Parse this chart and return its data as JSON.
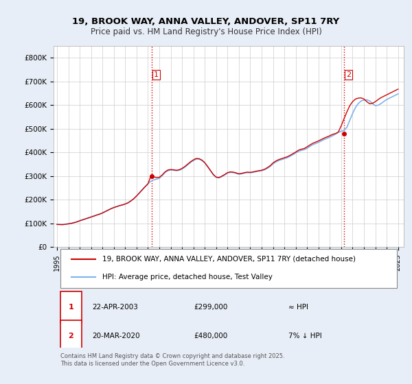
{
  "title_line1": "19, BROOK WAY, ANNA VALLEY, ANDOVER, SP11 7RY",
  "title_line2": "Price paid vs. HM Land Registry's House Price Index (HPI)",
  "ylabel": "",
  "xlim_start": 1995.0,
  "xlim_end": 2025.5,
  "ylim_bottom": 0,
  "ylim_top": 850000,
  "yticks": [
    0,
    100000,
    200000,
    300000,
    400000,
    500000,
    600000,
    700000,
    800000
  ],
  "ytick_labels": [
    "£0",
    "£100K",
    "£200K",
    "£300K",
    "£400K",
    "£500K",
    "£600K",
    "£700K",
    "£800K"
  ],
  "xticks": [
    1995,
    1996,
    1997,
    1998,
    1999,
    2000,
    2001,
    2002,
    2003,
    2004,
    2005,
    2006,
    2007,
    2008,
    2009,
    2010,
    2011,
    2012,
    2013,
    2014,
    2015,
    2016,
    2017,
    2018,
    2019,
    2020,
    2021,
    2022,
    2023,
    2024,
    2025
  ],
  "background_color": "#e8eef7",
  "plot_background": "#ffffff",
  "grid_color": "#cccccc",
  "hpi_color": "#7fb3e8",
  "price_color": "#cc0000",
  "vline_color": "#cc0000",
  "vline_style": ":",
  "sale1_year": 2003.31,
  "sale1_price": 299000,
  "sale2_year": 2020.22,
  "sale2_price": 480000,
  "legend_label1": "19, BROOK WAY, ANNA VALLEY, ANDOVER, SP11 7RY (detached house)",
  "legend_label2": "HPI: Average price, detached house, Test Valley",
  "annotation1_label": "1",
  "annotation1_date": "22-APR-2003",
  "annotation1_price": "£299,000",
  "annotation1_note": "≈ HPI",
  "annotation2_label": "2",
  "annotation2_date": "20-MAR-2020",
  "annotation2_price": "£480,000",
  "annotation2_note": "7% ↓ HPI",
  "footer": "Contains HM Land Registry data © Crown copyright and database right 2025.\nThis data is licensed under the Open Government Licence v3.0.",
  "hpi_data_years": [
    1995.0,
    1995.25,
    1995.5,
    1995.75,
    1996.0,
    1996.25,
    1996.5,
    1996.75,
    1997.0,
    1997.25,
    1997.5,
    1997.75,
    1998.0,
    1998.25,
    1998.5,
    1998.75,
    1999.0,
    1999.25,
    1999.5,
    1999.75,
    2000.0,
    2000.25,
    2000.5,
    2000.75,
    2001.0,
    2001.25,
    2001.5,
    2001.75,
    2002.0,
    2002.25,
    2002.5,
    2002.75,
    2003.0,
    2003.25,
    2003.5,
    2003.75,
    2004.0,
    2004.25,
    2004.5,
    2004.75,
    2005.0,
    2005.25,
    2005.5,
    2005.75,
    2006.0,
    2006.25,
    2006.5,
    2006.75,
    2007.0,
    2007.25,
    2007.5,
    2007.75,
    2008.0,
    2008.25,
    2008.5,
    2008.75,
    2009.0,
    2009.25,
    2009.5,
    2009.75,
    2010.0,
    2010.25,
    2010.5,
    2010.75,
    2011.0,
    2011.25,
    2011.5,
    2011.75,
    2012.0,
    2012.25,
    2012.5,
    2012.75,
    2013.0,
    2013.25,
    2013.5,
    2013.75,
    2014.0,
    2014.25,
    2014.5,
    2014.75,
    2015.0,
    2015.25,
    2015.5,
    2015.75,
    2016.0,
    2016.25,
    2016.5,
    2016.75,
    2017.0,
    2017.25,
    2017.5,
    2017.75,
    2018.0,
    2018.25,
    2018.5,
    2018.75,
    2019.0,
    2019.25,
    2019.5,
    2019.75,
    2020.0,
    2020.25,
    2020.5,
    2020.75,
    2021.0,
    2021.25,
    2021.5,
    2021.75,
    2022.0,
    2022.25,
    2022.5,
    2022.75,
    2023.0,
    2023.25,
    2023.5,
    2023.75,
    2024.0,
    2024.25,
    2024.5,
    2024.75,
    2025.0
  ],
  "hpi_data_values": [
    96000,
    95000,
    95000,
    97000,
    99000,
    101000,
    104000,
    107000,
    112000,
    116000,
    120000,
    124000,
    128000,
    132000,
    136000,
    140000,
    145000,
    151000,
    157000,
    163000,
    168000,
    172000,
    176000,
    179000,
    183000,
    188000,
    196000,
    205000,
    217000,
    230000,
    243000,
    256000,
    268000,
    278000,
    284000,
    287000,
    291000,
    302000,
    315000,
    323000,
    326000,
    325000,
    323000,
    325000,
    330000,
    338000,
    348000,
    358000,
    366000,
    372000,
    372000,
    366000,
    356000,
    340000,
    323000,
    306000,
    295000,
    293000,
    298000,
    305000,
    313000,
    316000,
    315000,
    312000,
    308000,
    310000,
    313000,
    315000,
    314000,
    316000,
    319000,
    321000,
    323000,
    327000,
    333000,
    341000,
    352000,
    360000,
    366000,
    370000,
    374000,
    378000,
    384000,
    391000,
    398000,
    405000,
    409000,
    412000,
    418000,
    426000,
    433000,
    438000,
    443000,
    449000,
    455000,
    460000,
    465000,
    471000,
    478000,
    485000,
    490000,
    493000,
    507000,
    536000,
    565000,
    590000,
    607000,
    618000,
    622000,
    623000,
    618000,
    607000,
    598000,
    600000,
    607000,
    616000,
    624000,
    630000,
    636000,
    642000,
    648000
  ],
  "price_line_years": [
    1995.0,
    1995.25,
    1995.5,
    1995.75,
    1996.0,
    1996.25,
    1996.5,
    1996.75,
    1997.0,
    1997.25,
    1997.5,
    1997.75,
    1998.0,
    1998.25,
    1998.5,
    1998.75,
    1999.0,
    1999.25,
    1999.5,
    1999.75,
    2000.0,
    2000.25,
    2000.5,
    2000.75,
    2001.0,
    2001.25,
    2001.5,
    2001.75,
    2002.0,
    2002.25,
    2002.5,
    2002.75,
    2003.0,
    2003.25,
    2003.5,
    2003.75,
    2004.0,
    2004.25,
    2004.5,
    2004.75,
    2005.0,
    2005.25,
    2005.5,
    2005.75,
    2006.0,
    2006.25,
    2006.5,
    2006.75,
    2007.0,
    2007.25,
    2007.5,
    2007.75,
    2008.0,
    2008.25,
    2008.5,
    2008.75,
    2009.0,
    2009.25,
    2009.5,
    2009.75,
    2010.0,
    2010.25,
    2010.5,
    2010.75,
    2011.0,
    2011.25,
    2011.5,
    2011.75,
    2012.0,
    2012.25,
    2012.5,
    2012.75,
    2013.0,
    2013.25,
    2013.5,
    2013.75,
    2014.0,
    2014.25,
    2014.5,
    2014.75,
    2015.0,
    2015.25,
    2015.5,
    2015.75,
    2016.0,
    2016.25,
    2016.5,
    2016.75,
    2017.0,
    2017.25,
    2017.5,
    2017.75,
    2018.0,
    2018.25,
    2018.5,
    2018.75,
    2019.0,
    2019.25,
    2019.5,
    2019.75,
    2020.0,
    2020.25,
    2020.5,
    2020.75,
    2021.0,
    2021.25,
    2021.5,
    2021.75,
    2022.0,
    2022.25,
    2022.5,
    2022.75,
    2023.0,
    2023.25,
    2023.5,
    2023.75,
    2024.0,
    2024.25,
    2024.5,
    2024.75,
    2025.0
  ],
  "price_line_values": [
    96000,
    95500,
    95000,
    96500,
    98000,
    100000,
    103000,
    106500,
    111000,
    115000,
    119000,
    123000,
    127000,
    131000,
    135500,
    139000,
    144000,
    150000,
    156000,
    162000,
    167000,
    171000,
    175000,
    178000,
    182000,
    187000,
    195000,
    204000,
    216000,
    229000,
    242000,
    255000,
    267500,
    299000,
    297000,
    294000,
    295000,
    305000,
    318000,
    326000,
    328000,
    327000,
    325000,
    327000,
    333000,
    341000,
    351000,
    361000,
    369000,
    375000,
    374000,
    368000,
    357000,
    341000,
    324000,
    307000,
    296000,
    294000,
    300000,
    307000,
    315000,
    318000,
    317000,
    314000,
    310000,
    312000,
    315000,
    317000,
    316000,
    318000,
    321000,
    323000,
    325000,
    329000,
    336000,
    344000,
    356000,
    364000,
    370000,
    374000,
    378000,
    382000,
    388000,
    395000,
    402000,
    410000,
    414000,
    417000,
    424000,
    432000,
    439000,
    444000,
    449000,
    455000,
    461000,
    466000,
    471000,
    477000,
    480000,
    487000,
    513000,
    543000,
    572000,
    598000,
    615000,
    626000,
    630000,
    631000,
    626000,
    615000,
    606000,
    608000,
    615000,
    624000,
    632000,
    638000,
    644000,
    650000,
    656000,
    662000,
    668000
  ]
}
